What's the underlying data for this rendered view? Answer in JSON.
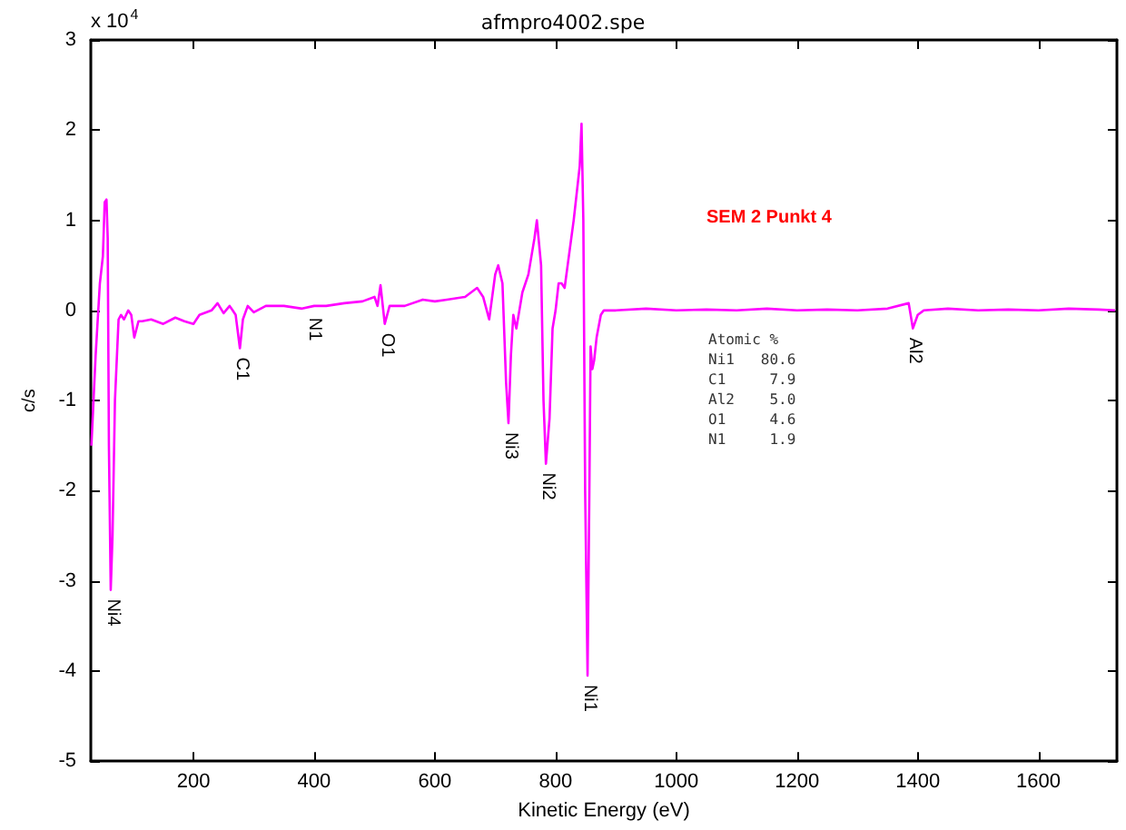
{
  "chart_data": {
    "type": "line",
    "title": "afmpro4002.spe",
    "xlabel": "Kinetic Energy (eV)",
    "ylabel": "c/s",
    "xlim": [
      30,
      1730
    ],
    "xticks": [
      200,
      400,
      600,
      800,
      1000,
      1200,
      1400,
      1600
    ],
    "ylim": [
      -5,
      3
    ],
    "yticks": [
      -5,
      -4,
      -3,
      -2,
      -1,
      0,
      1,
      2,
      3
    ],
    "grid": false,
    "marker": "none",
    "line_style": "solid",
    "x": [
      31,
      38,
      45,
      50,
      53,
      56,
      58,
      60,
      63,
      66,
      70,
      76,
      80,
      85,
      92,
      97,
      102,
      109,
      115,
      130,
      150,
      170,
      185,
      200,
      210,
      230,
      240,
      250,
      260,
      265,
      270,
      277,
      282,
      290,
      300,
      320,
      350,
      380,
      400,
      420,
      450,
      480,
      500,
      505,
      510,
      517,
      525,
      550,
      580,
      600,
      620,
      650,
      670,
      680,
      690,
      700,
      705,
      712,
      718,
      722,
      726,
      730,
      735,
      745,
      755,
      765,
      769,
      776,
      780,
      784,
      790,
      795,
      800,
      805,
      810,
      815,
      820,
      830,
      840,
      843,
      846,
      849,
      853,
      856,
      858,
      861,
      864,
      868,
      875,
      880,
      900,
      950,
      1000,
      1050,
      1100,
      1150,
      1200,
      1250,
      1300,
      1350,
      1385,
      1392,
      1400,
      1410,
      1450,
      1500,
      1550,
      1600,
      1650,
      1700,
      1727
    ],
    "series": [
      {
        "color": "#ff00ff",
        "values": [
          -1.5,
          -0.5,
          0.3,
          0.6,
          1.2,
          1.23,
          0.8,
          -1.5,
          -3.1,
          -2.5,
          -1.0,
          -0.1,
          -0.05,
          -0.1,
          0.0,
          -0.05,
          -0.3,
          -0.12,
          -0.12,
          -0.1,
          -0.15,
          -0.08,
          -0.12,
          -0.15,
          -0.05,
          0.0,
          0.08,
          -0.03,
          0.05,
          0.0,
          -0.05,
          -0.42,
          -0.1,
          0.05,
          -0.02,
          0.05,
          0.05,
          0.02,
          0.05,
          0.05,
          0.08,
          0.1,
          0.15,
          0.05,
          0.28,
          -0.15,
          0.05,
          0.05,
          0.12,
          0.1,
          0.12,
          0.15,
          0.25,
          0.15,
          -0.1,
          0.4,
          0.5,
          0.3,
          -0.8,
          -1.25,
          -0.5,
          -0.05,
          -0.2,
          0.2,
          0.4,
          0.8,
          1.0,
          0.5,
          -1.0,
          -1.7,
          -1.2,
          -0.2,
          0.0,
          0.3,
          0.3,
          0.25,
          0.5,
          1.0,
          1.6,
          2.07,
          1.0,
          -2.0,
          -4.05,
          -2.0,
          -0.4,
          -0.65,
          -0.55,
          -0.3,
          -0.05,
          0.0,
          0.0,
          0.02,
          0.0,
          0.01,
          0.0,
          0.02,
          0.0,
          0.01,
          0.0,
          0.02,
          0.08,
          -0.2,
          -0.05,
          0.0,
          0.02,
          0.0,
          0.01,
          0.0,
          0.02,
          0.01,
          0.0
        ]
      }
    ],
    "annotations": [
      "x 10$^{4}$",
      "SEM 2 Punkt 4",
      "Atomic %",
      "Ni1   80.6",
      "C1     7.9",
      "Al2    5.0",
      "O1     4.6",
      "N1     1.9",
      {
        "text": "Ni4",
        "x": 63,
        "y": -3.1
      },
      {
        "text": "C1",
        "x": 277,
        "y": -0.42
      },
      {
        "text": "N1",
        "x": 397,
        "y": 0.02
      },
      {
        "text": "O1",
        "x": 517,
        "y": -0.15
      },
      {
        "text": "Ni3",
        "x": 722,
        "y": -1.25
      },
      {
        "text": "Ni2",
        "x": 784,
        "y": -1.7
      },
      {
        "text": "Ni1",
        "x": 853,
        "y": -4.05
      },
      {
        "text": "Al2",
        "x": 1392,
        "y": -0.2
      }
    ]
  }
}
